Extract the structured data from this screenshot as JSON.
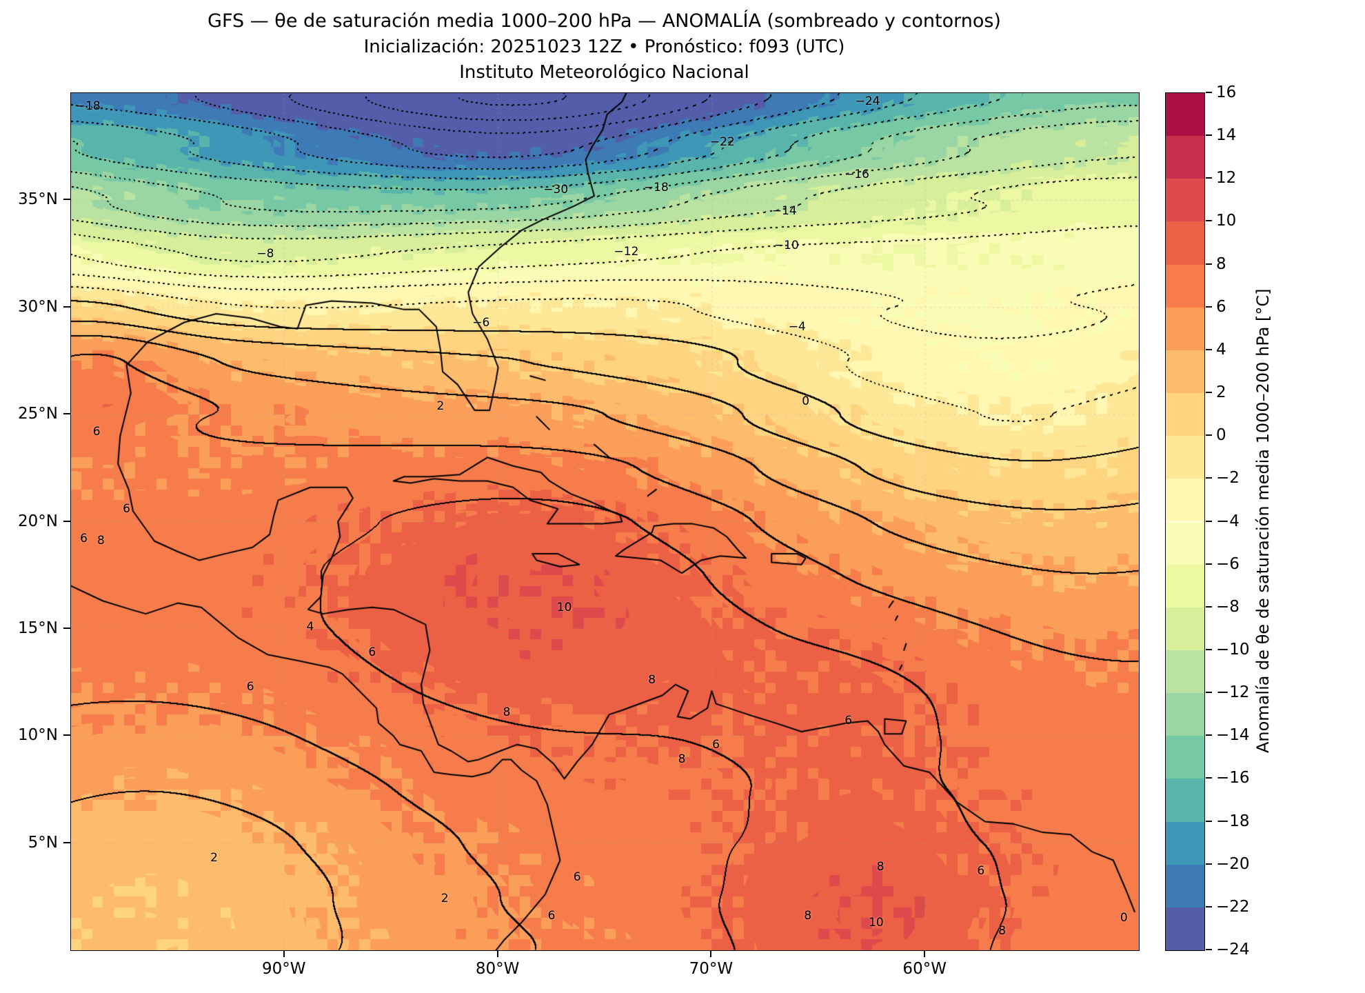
{
  "title": {
    "line1": "GFS — θe de saturación media 1000–200 hPa — ANOMALÍA (sombreado y contornos)",
    "line2": "Inicialización: 20251023 12Z  •  Pronóstico: f093 (UTC)",
    "line3": "Instituto Meteorológico Nacional"
  },
  "axes": {
    "lon_min": -100,
    "lon_max": -50,
    "lat_min": 0,
    "lat_max": 40,
    "y_ticks": [
      {
        "label": "35°N",
        "lat": 35
      },
      {
        "label": "30°N",
        "lat": 30
      },
      {
        "label": "25°N",
        "lat": 25
      },
      {
        "label": "20°N",
        "lat": 20
      },
      {
        "label": "15°N",
        "lat": 15
      },
      {
        "label": "10°N",
        "lat": 10
      },
      {
        "label": "5°N",
        "lat": 5
      }
    ],
    "x_ticks": [
      {
        "label": "90°W",
        "lon": -90
      },
      {
        "label": "80°W",
        "lon": -80
      },
      {
        "label": "70°W",
        "lon": -70
      },
      {
        "label": "60°W",
        "lon": -60
      }
    ]
  },
  "colorbar": {
    "min": -24,
    "max": 16,
    "step": 2,
    "tick_values": [
      16,
      14,
      12,
      10,
      8,
      6,
      4,
      2,
      0,
      -2,
      -4,
      -6,
      -8,
      -10,
      -12,
      -14,
      -16,
      -18,
      -20,
      -22,
      -24
    ],
    "label": "Anomalía de θe de saturación media 1000–200 hPa [°C]",
    "colormap_anchors": [
      "#5e4fa2",
      "#3288bd",
      "#66c2a5",
      "#abdda4",
      "#e6f598",
      "#ffffbf",
      "#fee08b",
      "#fdae61",
      "#f46d43",
      "#d53e4f",
      "#9e0142"
    ]
  },
  "chart_data": {
    "type": "filled_contour_map",
    "variable": "Anomalía de θe de saturación media 1000–200 hPa",
    "units": "°C",
    "model": "GFS",
    "init": "20251023 12Z",
    "forecast_hour": "f093 (UTC)",
    "lon_range": [
      -100,
      -50
    ],
    "lat_range": [
      0,
      40
    ],
    "contour_interval": 2,
    "shading_min": -24,
    "shading_max": 16,
    "negative_contours_dotted": true,
    "field_model": {
      "base_lats": [
        0,
        2.5,
        5,
        7.5,
        10,
        12.5,
        15,
        17.5,
        20,
        22.5,
        25,
        27.5,
        30,
        32.5,
        35,
        37.5,
        40
      ],
      "base_vals": [
        6.5,
        6.8,
        7.0,
        7.2,
        7.3,
        7.4,
        7.4,
        7.2,
        6.8,
        5.8,
        4.2,
        2.2,
        -0.5,
        -4.0,
        -8.5,
        -14.0,
        -19.5
      ],
      "bumps": [
        {
          "lon": -78,
          "lat": 17,
          "amp": 2.8,
          "sx": 7,
          "sy": 4.5
        },
        {
          "lon": -96.5,
          "lat": 2.5,
          "amp": -4.5,
          "sx": 9,
          "sy": 6
        },
        {
          "lon": -63,
          "lat": 1,
          "amp": 3.2,
          "sx": 5,
          "sy": 4
        },
        {
          "lon": -52,
          "lat": 22,
          "amp": -4.0,
          "sx": 11,
          "sy": 6
        },
        {
          "lon": -58,
          "lat": 27,
          "amp": -3.5,
          "sx": 8,
          "sy": 4
        },
        {
          "lon": -79,
          "lat": 39,
          "amp": -9.0,
          "sx": 8,
          "sy": 4
        },
        {
          "lon": -93,
          "lat": 34,
          "amp": -4.5,
          "sx": 7,
          "sy": 3.5
        },
        {
          "lon": -93,
          "lat": 27,
          "amp": 2.0,
          "sx": 6,
          "sy": 2.5
        },
        {
          "lon": -99.5,
          "lat": 27.5,
          "amp": 3.5,
          "sx": 3.5,
          "sy": 2.5
        },
        {
          "lon": -50,
          "lat": 40,
          "amp": 5.0,
          "sx": 8,
          "sy": 4
        },
        {
          "lon": -63,
          "lat": 12,
          "amp": 1.5,
          "sx": 5,
          "sy": 3
        }
      ],
      "noise_amp": 0.7
    },
    "contour_labels": [
      {
        "v": -18,
        "lon": -99.2,
        "lat": 39.4
      },
      {
        "v": -8,
        "lon": -90.9,
        "lat": 32.5
      },
      {
        "v": -30,
        "lon": -77.3,
        "lat": 35.5
      },
      {
        "v": -18,
        "lon": -72.6,
        "lat": 35.6
      },
      {
        "v": -22,
        "lon": -69.5,
        "lat": 37.7
      },
      {
        "v": -24,
        "lon": -62.7,
        "lat": 39.6
      },
      {
        "v": -16,
        "lon": -63.2,
        "lat": 36.2
      },
      {
        "v": -14,
        "lon": -66.6,
        "lat": 34.5
      },
      {
        "v": -10,
        "lon": -66.5,
        "lat": 32.9
      },
      {
        "v": -12,
        "lon": -74.0,
        "lat": 32.6
      },
      {
        "v": -6,
        "lon": -80.8,
        "lat": 29.3
      },
      {
        "v": -4,
        "lon": -66.0,
        "lat": 29.1
      },
      {
        "v": 2,
        "lon": -82.7,
        "lat": 25.4
      },
      {
        "v": 0,
        "lon": -65.6,
        "lat": 25.6
      },
      {
        "v": 6,
        "lon": -98.8,
        "lat": 24.2
      },
      {
        "v": 6,
        "lon": -97.4,
        "lat": 20.6
      },
      {
        "v": 6,
        "lon": -99.4,
        "lat": 19.2
      },
      {
        "v": 8,
        "lon": -98.6,
        "lat": 19.1
      },
      {
        "v": 10,
        "lon": -76.9,
        "lat": 16.0
      },
      {
        "v": 4,
        "lon": -88.8,
        "lat": 15.1
      },
      {
        "v": 6,
        "lon": -85.9,
        "lat": 13.9
      },
      {
        "v": 6,
        "lon": -91.6,
        "lat": 12.3
      },
      {
        "v": 8,
        "lon": -79.6,
        "lat": 11.1
      },
      {
        "v": 8,
        "lon": -72.8,
        "lat": 12.6
      },
      {
        "v": 6,
        "lon": -69.8,
        "lat": 9.6
      },
      {
        "v": 6,
        "lon": -63.6,
        "lat": 10.7
      },
      {
        "v": 8,
        "lon": -71.4,
        "lat": 8.9
      },
      {
        "v": 2,
        "lon": -93.3,
        "lat": 4.3
      },
      {
        "v": 2,
        "lon": -82.5,
        "lat": 2.4
      },
      {
        "v": 6,
        "lon": -77.5,
        "lat": 1.6
      },
      {
        "v": 6,
        "lon": -76.3,
        "lat": 3.4
      },
      {
        "v": 8,
        "lon": -65.5,
        "lat": 1.6
      },
      {
        "v": 10,
        "lon": -62.3,
        "lat": 1.3
      },
      {
        "v": 8,
        "lon": -62.1,
        "lat": 3.9
      },
      {
        "v": 6,
        "lon": -57.4,
        "lat": 3.7
      },
      {
        "v": 8,
        "lon": -56.4,
        "lat": 0.9
      },
      {
        "v": 0,
        "lon": -50.7,
        "lat": 1.5
      }
    ]
  },
  "map": {
    "gridline_lons": [
      -90,
      -80,
      -70,
      -60
    ],
    "gridline_lats": [
      5,
      10,
      15,
      20,
      25,
      30,
      35
    ],
    "coastlines": [
      [
        [
          -97.2,
          26.0
        ],
        [
          -97.4,
          27.3
        ],
        [
          -96.4,
          28.4
        ],
        [
          -94.7,
          29.3
        ],
        [
          -93.2,
          29.7
        ],
        [
          -91.6,
          29.5
        ],
        [
          -90.2,
          29.1
        ],
        [
          -89.4,
          29.0
        ],
        [
          -89.0,
          30.1
        ],
        [
          -87.8,
          30.3
        ],
        [
          -85.9,
          30.2
        ],
        [
          -84.4,
          29.9
        ],
        [
          -83.7,
          29.9
        ],
        [
          -82.9,
          29.1
        ],
        [
          -82.7,
          28.0
        ],
        [
          -82.6,
          27.0
        ],
        [
          -81.9,
          26.4
        ],
        [
          -81.1,
          25.2
        ],
        [
          -80.4,
          25.2
        ],
        [
          -80.1,
          26.6
        ],
        [
          -80.0,
          27.2
        ],
        [
          -80.5,
          28.5
        ],
        [
          -81.2,
          29.7
        ],
        [
          -81.4,
          30.7
        ],
        [
          -80.9,
          31.9
        ],
        [
          -79.9,
          32.8
        ],
        [
          -78.9,
          33.6
        ],
        [
          -77.9,
          34.1
        ],
        [
          -76.5,
          34.7
        ],
        [
          -75.5,
          35.2
        ],
        [
          -75.8,
          36.3
        ],
        [
          -75.9,
          36.9
        ],
        [
          -75.6,
          37.5
        ],
        [
          -75.1,
          38.3
        ],
        [
          -74.9,
          39.0
        ],
        [
          -74.2,
          39.6
        ],
        [
          -74.0,
          40.0
        ]
      ],
      [
        [
          -97.2,
          26.0
        ],
        [
          -97.7,
          24.0
        ],
        [
          -97.8,
          22.7
        ],
        [
          -97.3,
          21.5
        ],
        [
          -97.1,
          20.5
        ],
        [
          -96.1,
          19.1
        ],
        [
          -95.0,
          18.6
        ],
        [
          -94.0,
          18.2
        ],
        [
          -92.8,
          18.5
        ],
        [
          -91.5,
          18.8
        ],
        [
          -90.7,
          19.4
        ],
        [
          -90.5,
          20.3
        ],
        [
          -90.3,
          21.0
        ],
        [
          -88.8,
          21.6
        ],
        [
          -87.1,
          21.6
        ],
        [
          -86.8,
          21.1
        ],
        [
          -87.5,
          20.0
        ],
        [
          -87.4,
          19.3
        ],
        [
          -87.8,
          18.3
        ],
        [
          -88.2,
          17.5
        ],
        [
          -88.3,
          16.5
        ],
        [
          -88.9,
          15.9
        ],
        [
          -88.2,
          15.7
        ],
        [
          -87.0,
          15.9
        ],
        [
          -85.9,
          16.0
        ],
        [
          -84.9,
          15.9
        ],
        [
          -83.4,
          15.2
        ],
        [
          -83.2,
          14.0
        ],
        [
          -83.6,
          12.4
        ],
        [
          -83.5,
          11.5
        ],
        [
          -82.8,
          9.6
        ],
        [
          -82.2,
          9.3
        ],
        [
          -81.4,
          8.8
        ],
        [
          -80.9,
          8.9
        ],
        [
          -79.9,
          9.3
        ],
        [
          -79.1,
          9.6
        ],
        [
          -78.2,
          9.4
        ],
        [
          -77.4,
          8.7
        ],
        [
          -76.9,
          8.0
        ],
        [
          -76.3,
          8.8
        ],
        [
          -75.6,
          9.6
        ],
        [
          -74.8,
          11.0
        ],
        [
          -74.2,
          11.2
        ],
        [
          -72.3,
          11.9
        ],
        [
          -71.7,
          12.4
        ],
        [
          -71.1,
          12.1
        ],
        [
          -71.6,
          10.9
        ],
        [
          -71.0,
          10.8
        ],
        [
          -70.2,
          11.3
        ],
        [
          -70.0,
          12.1
        ],
        [
          -69.8,
          11.5
        ],
        [
          -68.3,
          11.0
        ],
        [
          -67.0,
          10.6
        ],
        [
          -65.8,
          10.2
        ],
        [
          -64.2,
          10.5
        ],
        [
          -63.7,
          10.6
        ],
        [
          -62.7,
          10.7
        ],
        [
          -62.2,
          10.2
        ],
        [
          -61.9,
          9.6
        ],
        [
          -61.0,
          8.6
        ],
        [
          -59.8,
          8.3
        ],
        [
          -58.5,
          6.9
        ],
        [
          -57.2,
          6.0
        ],
        [
          -55.9,
          5.9
        ],
        [
          -54.5,
          5.5
        ],
        [
          -53.2,
          5.4
        ],
        [
          -52.2,
          4.6
        ],
        [
          -51.2,
          4.2
        ],
        [
          -50.6,
          2.8
        ],
        [
          -50.2,
          1.8
        ]
      ],
      [
        [
          -100.0,
          17.0
        ],
        [
          -98.5,
          16.3
        ],
        [
          -97.2,
          15.9
        ],
        [
          -96.5,
          15.7
        ],
        [
          -95.0,
          16.2
        ],
        [
          -93.9,
          16.0
        ],
        [
          -92.2,
          14.6
        ],
        [
          -90.8,
          13.8
        ],
        [
          -89.3,
          13.5
        ],
        [
          -87.9,
          13.2
        ],
        [
          -87.3,
          12.9
        ],
        [
          -86.7,
          12.3
        ],
        [
          -85.7,
          11.3
        ],
        [
          -85.6,
          10.6
        ],
        [
          -84.9,
          10.0
        ],
        [
          -84.6,
          9.6
        ],
        [
          -83.6,
          9.3
        ],
        [
          -83.0,
          8.3
        ],
        [
          -82.2,
          8.2
        ],
        [
          -81.2,
          8.1
        ],
        [
          -80.4,
          8.3
        ],
        [
          -79.8,
          8.9
        ],
        [
          -79.4,
          8.9
        ],
        [
          -78.9,
          8.4
        ],
        [
          -78.2,
          7.9
        ],
        [
          -77.7,
          6.8
        ],
        [
          -77.4,
          5.5
        ],
        [
          -77.1,
          4.2
        ],
        [
          -77.8,
          2.6
        ],
        [
          -78.9,
          1.3
        ],
        [
          -79.7,
          0.5
        ],
        [
          -80.1,
          0.0
        ]
      ],
      [
        [
          -84.9,
          21.9
        ],
        [
          -84.4,
          22.1
        ],
        [
          -83.2,
          22.1
        ],
        [
          -81.8,
          22.2
        ],
        [
          -80.5,
          23.0
        ],
        [
          -79.3,
          22.6
        ],
        [
          -78.0,
          22.3
        ],
        [
          -77.6,
          21.9
        ],
        [
          -76.6,
          21.3
        ],
        [
          -75.6,
          20.9
        ],
        [
          -74.3,
          20.3
        ],
        [
          -74.2,
          20.0
        ],
        [
          -75.1,
          19.9
        ],
        [
          -76.3,
          19.9
        ],
        [
          -77.7,
          19.9
        ],
        [
          -77.2,
          20.6
        ],
        [
          -78.5,
          21.0
        ],
        [
          -79.3,
          21.6
        ],
        [
          -80.5,
          21.9
        ],
        [
          -81.8,
          21.9
        ],
        [
          -83.0,
          22.0
        ],
        [
          -84.1,
          21.8
        ],
        [
          -84.9,
          21.9
        ]
      ],
      [
        [
          -74.5,
          18.4
        ],
        [
          -74.1,
          18.7
        ],
        [
          -72.8,
          19.5
        ],
        [
          -72.7,
          19.8
        ],
        [
          -71.8,
          19.9
        ],
        [
          -70.9,
          19.9
        ],
        [
          -69.9,
          19.7
        ],
        [
          -69.3,
          19.3
        ],
        [
          -68.7,
          18.6
        ],
        [
          -68.4,
          18.3
        ],
        [
          -69.6,
          18.4
        ],
        [
          -70.5,
          18.2
        ],
        [
          -71.4,
          17.6
        ],
        [
          -72.4,
          18.2
        ],
        [
          -73.5,
          18.3
        ],
        [
          -74.5,
          18.4
        ]
      ],
      [
        [
          -78.4,
          18.5
        ],
        [
          -77.2,
          18.5
        ],
        [
          -76.2,
          18.0
        ],
        [
          -77.1,
          17.9
        ],
        [
          -78.2,
          18.2
        ],
        [
          -78.4,
          18.5
        ]
      ],
      [
        [
          -67.2,
          18.5
        ],
        [
          -66.0,
          18.5
        ],
        [
          -65.6,
          18.3
        ],
        [
          -65.8,
          18.0
        ],
        [
          -67.2,
          18.1
        ],
        [
          -67.2,
          18.5
        ]
      ],
      [
        [
          -61.9,
          10.8
        ],
        [
          -60.9,
          10.7
        ],
        [
          -61.1,
          10.1
        ],
        [
          -61.9,
          10.1
        ],
        [
          -61.9,
          10.8
        ]
      ],
      [
        [
          -78.5,
          26.8
        ],
        [
          -77.8,
          26.6
        ]
      ],
      [
        [
          -78.2,
          24.9
        ],
        [
          -77.6,
          24.3
        ]
      ],
      [
        [
          -75.5,
          23.6
        ],
        [
          -74.8,
          23.0
        ]
      ],
      [
        [
          -73.0,
          21.2
        ],
        [
          -72.6,
          21.5
        ]
      ],
      [
        [
          -61.2,
          13.1
        ],
        [
          -61.1,
          13.3
        ]
      ],
      [
        [
          -61.0,
          14.0
        ],
        [
          -60.9,
          14.3
        ]
      ],
      [
        [
          -61.4,
          15.4
        ],
        [
          -61.3,
          15.6
        ]
      ],
      [
        [
          -61.7,
          16.0
        ],
        [
          -61.5,
          16.3
        ]
      ]
    ]
  }
}
